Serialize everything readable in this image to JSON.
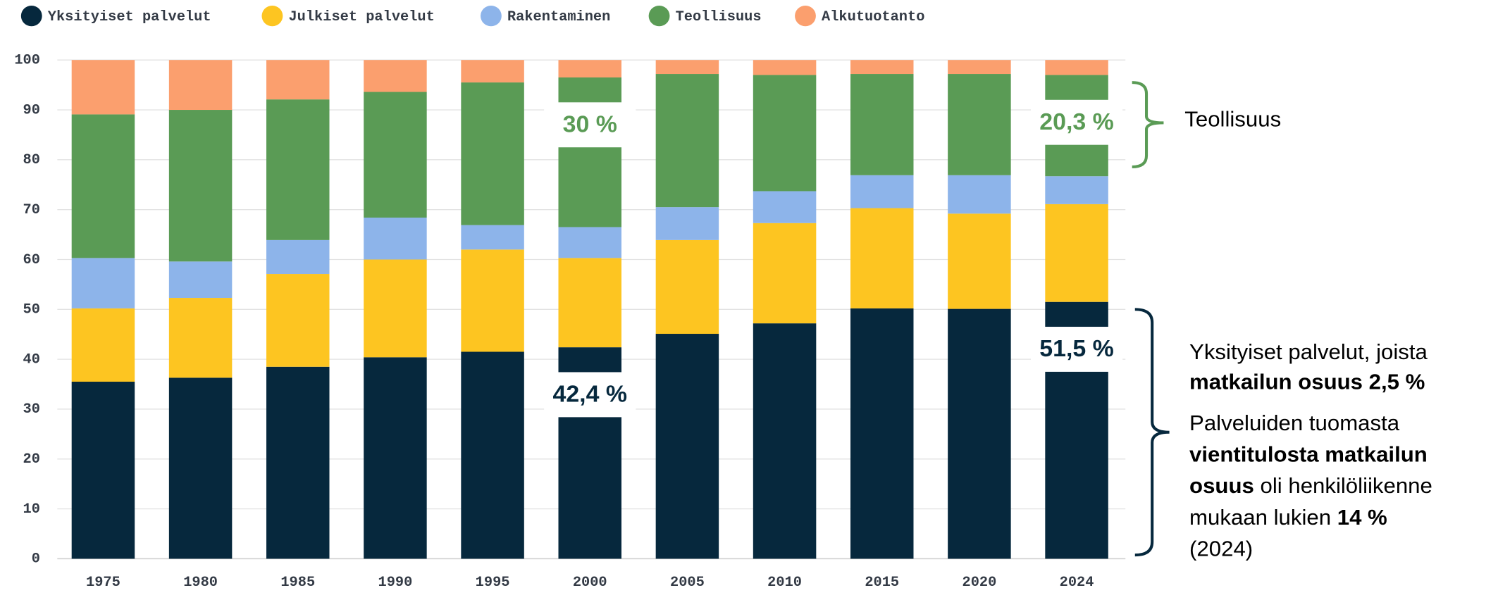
{
  "chart_data": {
    "type": "stacked_bar",
    "categories": [
      "1975",
      "1980",
      "1985",
      "1990",
      "1995",
      "2000",
      "2005",
      "2010",
      "2015",
      "2020",
      "2024"
    ],
    "series": [
      {
        "name": "Yksityiset palvelut",
        "color": "#06283d",
        "label_color": "#06283d",
        "values": [
          35.5,
          36.3,
          38.5,
          40.4,
          41.5,
          42.4,
          45.1,
          47.2,
          50.2,
          50.1,
          51.5
        ],
        "value_labels": [
          null,
          null,
          null,
          null,
          null,
          "42,4 %",
          null,
          null,
          null,
          null,
          "51,5 %"
        ]
      },
      {
        "name": "Julkiset palvelut",
        "color": "#fdc521",
        "values": [
          14.7,
          16.0,
          18.6,
          19.6,
          20.5,
          17.9,
          18.8,
          20.1,
          20.1,
          19.1,
          19.6
        ]
      },
      {
        "name": "Rakentaminen",
        "color": "#8db4ea",
        "values": [
          10.1,
          7.3,
          6.8,
          8.4,
          4.9,
          6.2,
          6.6,
          6.4,
          6.6,
          7.7,
          5.6
        ]
      },
      {
        "name": "Teollisuus",
        "color": "#5a9b55",
        "label_color": "#5a9b55",
        "values": [
          28.8,
          30.4,
          28.2,
          25.2,
          28.6,
          30.0,
          26.7,
          23.3,
          20.3,
          20.3,
          20.3
        ],
        "value_labels": [
          null,
          null,
          null,
          null,
          null,
          "30 %",
          null,
          null,
          null,
          null,
          "20,3 %"
        ]
      },
      {
        "name": "Alkutuotanto",
        "color": "#fb9f6e",
        "values": [
          10.9,
          10.0,
          7.9,
          6.4,
          4.5,
          3.5,
          2.8,
          3.0,
          2.8,
          2.8,
          3.0
        ]
      }
    ],
    "ylim": [
      0,
      100
    ],
    "yticks": [
      0,
      10,
      20,
      30,
      40,
      50,
      60,
      70,
      80,
      90,
      100
    ],
    "grid": true,
    "legend": "top",
    "notes": [
      {
        "lines": [
          [
            {
              "text": "Teollisuus",
              "bold": false
            }
          ]
        ]
      },
      {
        "lines": [
          [
            {
              "text": "Yksityiset palvelut, joista",
              "bold": false
            }
          ],
          [
            {
              "text": "matkailun osuus 2,5 %",
              "bold": true
            }
          ]
        ]
      },
      {
        "lines": [
          [
            {
              "text": "Palveluiden tuomasta",
              "bold": false
            }
          ],
          [
            {
              "text": "vientitulosta matkailun",
              "bold": true
            }
          ],
          [
            {
              "text": "osuus",
              "bold": true
            },
            {
              "text": " oli henkilöliikenne",
              "bold": false
            }
          ],
          [
            {
              "text": "mukaan lukien ",
              "bold": false
            },
            {
              "text": "14 %",
              "bold": true
            }
          ],
          [
            {
              "text": "(2024)",
              "bold": false
            }
          ]
        ]
      }
    ]
  }
}
